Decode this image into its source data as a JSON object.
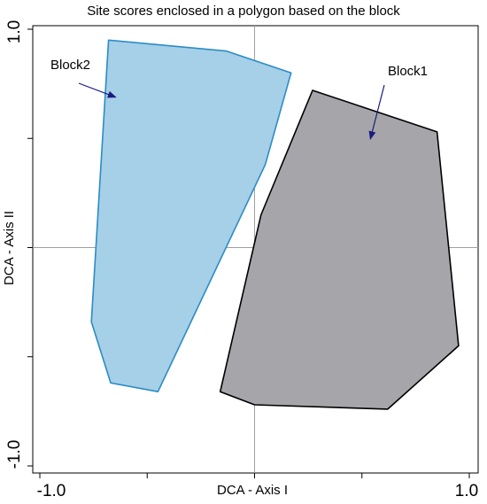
{
  "chart_data": {
    "type": "scatter",
    "title": "Site scores enclosed in a polygon based on the block",
    "xlabel": "DCA - Axis I",
    "ylabel": "DCA - Axis II",
    "xlim": [
      -1.0,
      1.0
    ],
    "ylim": [
      -1.0,
      1.0
    ],
    "x_tick_labels": [
      "-1.0",
      "1.0"
    ],
    "y_tick_labels": [
      "1.0",
      "-1.0"
    ],
    "x_ticks": [
      -1.0,
      -0.5,
      0.0,
      0.5,
      1.0
    ],
    "y_ticks": [
      1.0,
      0.5,
      0.0,
      -0.5,
      -1.0
    ],
    "reference_lines": {
      "x": 0,
      "y": 0
    },
    "grid": false,
    "polygons": [
      {
        "name": "Block2",
        "fill": "#a6cfe8",
        "stroke": "#2b8cc4",
        "points": [
          [
            -0.68,
            0.95
          ],
          [
            -0.13,
            0.9
          ],
          [
            0.17,
            0.8
          ],
          [
            0.05,
            0.38
          ],
          [
            -0.45,
            -0.66
          ],
          [
            -0.67,
            -0.62
          ],
          [
            -0.76,
            -0.34
          ]
        ]
      },
      {
        "name": "Block1",
        "fill": "#a6a6aa",
        "stroke": "#000000",
        "points": [
          [
            0.27,
            0.72
          ],
          [
            0.85,
            0.53
          ],
          [
            0.95,
            -0.45
          ],
          [
            0.62,
            -0.74
          ],
          [
            0.0,
            -0.72
          ],
          [
            -0.16,
            -0.66
          ],
          [
            0.03,
            0.15
          ]
        ]
      }
    ],
    "annotations": [
      {
        "text": "Block2",
        "target": [
          -0.65,
          0.69
        ]
      },
      {
        "text": "Block1",
        "target": [
          0.54,
          0.5
        ]
      }
    ]
  }
}
